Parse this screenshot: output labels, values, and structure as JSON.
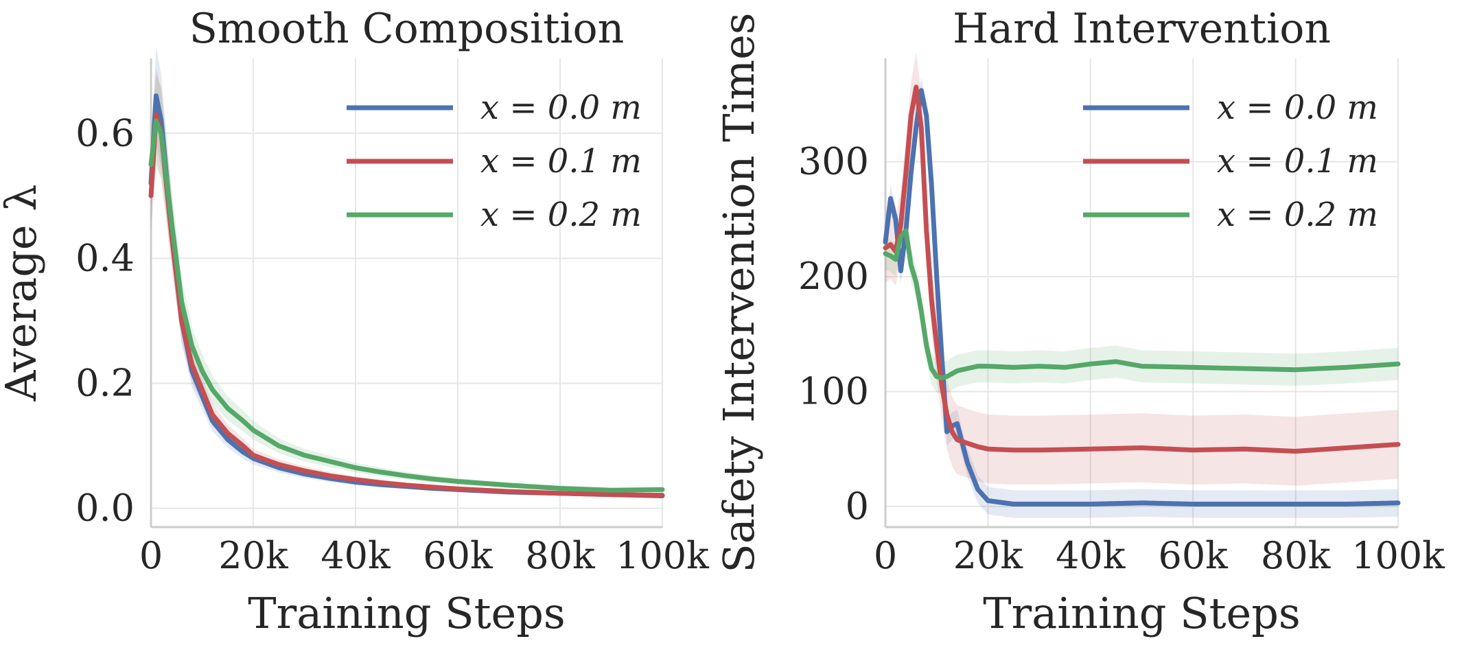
{
  "chart_data": [
    {
      "type": "line",
      "title": "Smooth Composition",
      "xlabel": "Training Steps",
      "ylabel": "Average λ",
      "xlim": [
        0,
        100000
      ],
      "ylim": [
        -0.03,
        0.72
      ],
      "xticks": [
        0,
        20000,
        40000,
        60000,
        80000,
        100000
      ],
      "xtick_labels": [
        "0",
        "20k",
        "40k",
        "60k",
        "80k",
        "100k"
      ],
      "yticks": [
        0.0,
        0.2,
        0.4,
        0.6
      ],
      "ytick_labels": [
        "0.0",
        "0.2",
        "0.4",
        "0.6"
      ],
      "grid": true,
      "legend": "top-right",
      "series": [
        {
          "name": "x = 0.0 m",
          "color": "#4c72b0",
          "x": [
            0,
            1000,
            2000,
            4000,
            6000,
            8000,
            10000,
            12000,
            15000,
            18000,
            20000,
            25000,
            30000,
            35000,
            40000,
            45000,
            50000,
            55000,
            60000,
            70000,
            80000,
            90000,
            100000
          ],
          "y": [
            0.52,
            0.66,
            0.62,
            0.45,
            0.3,
            0.22,
            0.18,
            0.14,
            0.11,
            0.09,
            0.08,
            0.065,
            0.055,
            0.048,
            0.042,
            0.038,
            0.035,
            0.032,
            0.03,
            0.026,
            0.024,
            0.022,
            0.02
          ]
        },
        {
          "name": "x = 0.1 m",
          "color": "#c44e52",
          "x": [
            0,
            1000,
            2000,
            4000,
            6000,
            8000,
            10000,
            12000,
            15000,
            18000,
            20000,
            25000,
            30000,
            35000,
            40000,
            45000,
            50000,
            55000,
            60000,
            70000,
            80000,
            90000,
            100000
          ],
          "y": [
            0.5,
            0.63,
            0.6,
            0.44,
            0.3,
            0.23,
            0.19,
            0.15,
            0.12,
            0.1,
            0.085,
            0.07,
            0.06,
            0.052,
            0.046,
            0.041,
            0.037,
            0.034,
            0.031,
            0.027,
            0.024,
            0.022,
            0.021
          ]
        },
        {
          "name": "x = 0.2 m",
          "color": "#55a868",
          "x": [
            0,
            1000,
            2000,
            4000,
            6000,
            8000,
            10000,
            12000,
            15000,
            18000,
            20000,
            25000,
            30000,
            35000,
            40000,
            45000,
            50000,
            55000,
            60000,
            70000,
            80000,
            90000,
            100000
          ],
          "y": [
            0.55,
            0.62,
            0.6,
            0.46,
            0.33,
            0.26,
            0.22,
            0.19,
            0.16,
            0.14,
            0.125,
            0.1,
            0.085,
            0.075,
            0.065,
            0.058,
            0.052,
            0.047,
            0.043,
            0.037,
            0.032,
            0.029,
            0.03
          ]
        }
      ]
    },
    {
      "type": "line",
      "title": "Hard Intervention",
      "xlabel": "Training Steps",
      "ylabel": "Safety Intervention Times",
      "xlim": [
        0,
        100000
      ],
      "ylim": [
        -18,
        390
      ],
      "xticks": [
        0,
        20000,
        40000,
        60000,
        80000,
        100000
      ],
      "xtick_labels": [
        "0",
        "20k",
        "40k",
        "60k",
        "80k",
        "100k"
      ],
      "yticks": [
        0,
        100,
        200,
        300
      ],
      "ytick_labels": [
        "0",
        "100",
        "200",
        "300"
      ],
      "grid": true,
      "legend": "top-right",
      "series": [
        {
          "name": "x = 0.0 m",
          "color": "#4c72b0",
          "x": [
            0,
            1000,
            2000,
            3000,
            4000,
            5000,
            6000,
            7000,
            8000,
            9000,
            10000,
            11000,
            12000,
            13000,
            14000,
            15000,
            16000,
            18000,
            20000,
            25000,
            30000,
            40000,
            50000,
            60000,
            70000,
            80000,
            90000,
            100000
          ],
          "y": [
            230,
            268,
            250,
            205,
            240,
            290,
            330,
            362,
            340,
            280,
            200,
            130,
            65,
            70,
            72,
            55,
            38,
            15,
            5,
            2,
            2,
            2,
            3,
            2,
            2,
            2,
            2,
            3
          ],
          "band": 12
        },
        {
          "name": "x = 0.1 m",
          "color": "#c44e52",
          "x": [
            0,
            1000,
            2000,
            3000,
            4000,
            5000,
            6000,
            7000,
            8000,
            9000,
            10000,
            11000,
            12000,
            13000,
            14000,
            16000,
            18000,
            20000,
            25000,
            30000,
            40000,
            50000,
            60000,
            70000,
            80000,
            90000,
            100000
          ],
          "y": [
            225,
            228,
            222,
            245,
            290,
            340,
            365,
            330,
            240,
            180,
            140,
            105,
            80,
            65,
            58,
            55,
            52,
            50,
            49,
            49,
            50,
            51,
            49,
            50,
            48,
            51,
            54
          ],
          "band": 30
        },
        {
          "name": "x = 0.2 m",
          "color": "#55a868",
          "x": [
            0,
            1000,
            2000,
            3000,
            4000,
            5000,
            6000,
            7000,
            8000,
            9000,
            10000,
            11000,
            12000,
            14000,
            16000,
            18000,
            20000,
            25000,
            30000,
            35000,
            40000,
            45000,
            50000,
            60000,
            70000,
            80000,
            90000,
            100000
          ],
          "y": [
            220,
            218,
            215,
            235,
            240,
            210,
            195,
            170,
            140,
            120,
            113,
            112,
            113,
            118,
            120,
            122,
            122,
            121,
            122,
            121,
            124,
            126,
            122,
            121,
            120,
            119,
            121,
            124
          ],
          "band": 14
        }
      ]
    }
  ]
}
